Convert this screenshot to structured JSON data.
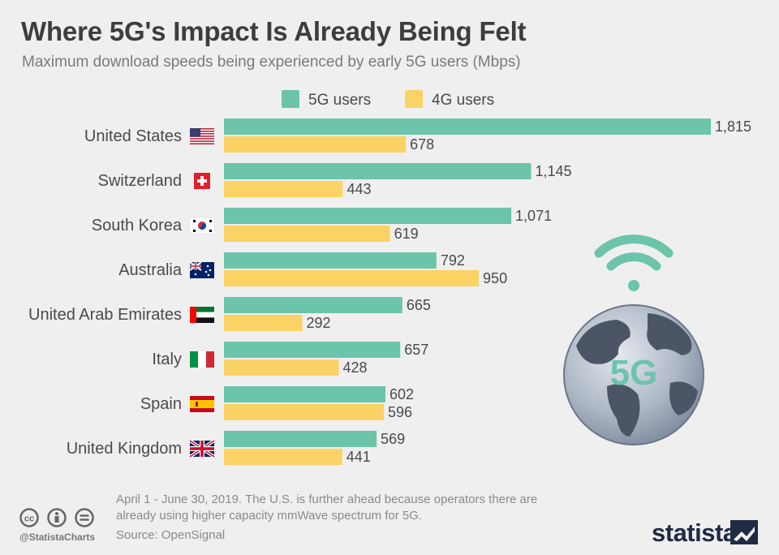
{
  "header": {
    "title": "Where 5G's Impact Is Already Being Felt",
    "subtitle": "Maximum download speeds being experienced by early 5G users (Mbps)"
  },
  "colors": {
    "series_5g": "#6cc4ab",
    "series_4g": "#fbd264",
    "label_text": "#4a4a4a"
  },
  "chart_data": {
    "type": "bar",
    "orientation": "horizontal",
    "categories": [
      "United States",
      "Switzerland",
      "South Korea",
      "Australia",
      "United Arab Emirates",
      "Italy",
      "Spain",
      "United Kingdom"
    ],
    "flags": [
      "us-flag-icon",
      "switzerland-flag-icon",
      "south-korea-flag-icon",
      "australia-flag-icon",
      "uae-flag-icon",
      "italy-flag-icon",
      "spain-flag-icon",
      "uk-flag-icon"
    ],
    "series": [
      {
        "name": "5G users",
        "values": [
          1815,
          1145,
          1071,
          792,
          665,
          657,
          602,
          569
        ],
        "labels": [
          "1,815",
          "1,145",
          "1,071",
          "792",
          "665",
          "657",
          "602",
          "569"
        ]
      },
      {
        "name": "4G users",
        "values": [
          678,
          443,
          619,
          950,
          292,
          428,
          596,
          441
        ],
        "labels": [
          "678",
          "443",
          "619",
          "950",
          "292",
          "428",
          "596",
          "441"
        ]
      }
    ],
    "xlim": [
      0,
      1815
    ],
    "grid": false,
    "legend": "top-center"
  },
  "illustration": {
    "globe_text": "5G",
    "icons": [
      "wifi-signal-icon",
      "globe-icon"
    ]
  },
  "footer": {
    "note": "April 1 - June 30, 2019. The U.S. is further ahead because operators there are already using higher capacity mmWave spectrum for 5G.",
    "source": "Source: OpenSignal",
    "handle": "@StatistaCharts",
    "logo": "statista"
  }
}
